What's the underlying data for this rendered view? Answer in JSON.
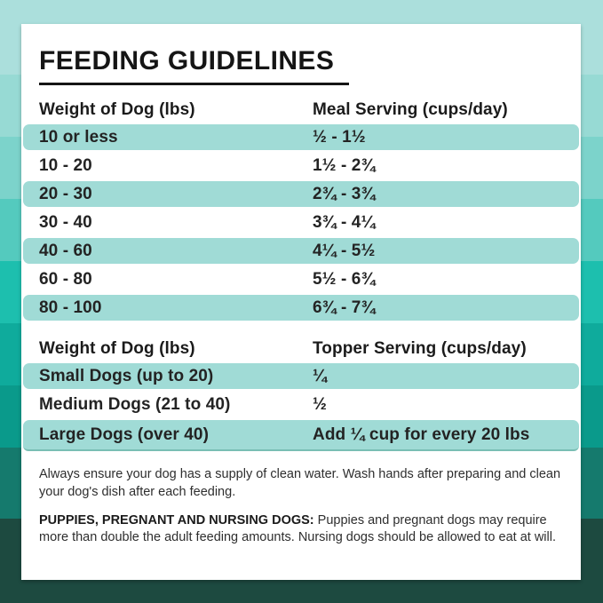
{
  "title": "FEEDING GUIDELINES",
  "meal_table": {
    "headers": {
      "weight": "Weight of Dog (lbs)",
      "serving": "Meal Serving (cups/day)"
    },
    "rows": [
      {
        "weight": "10 or less",
        "serving": "½ - 1½"
      },
      {
        "weight": "10 - 20",
        "serving": "1½ - 2¾"
      },
      {
        "weight": "20 - 30",
        "serving": "2¾ - 3¾"
      },
      {
        "weight": "30 - 40",
        "serving": "3¾ - 4¼"
      },
      {
        "weight": "40 - 60",
        "serving": "4¼ - 5½"
      },
      {
        "weight": "60 - 80",
        "serving": "5½ - 6¾"
      },
      {
        "weight": "80 - 100",
        "serving": "6¾ - 7¾"
      }
    ]
  },
  "topper_table": {
    "headers": {
      "weight": "Weight of Dog (lbs)",
      "serving": "Topper Serving (cups/day)"
    },
    "rows": [
      {
        "weight": "Small Dogs (up to 20)",
        "serving": "¼"
      },
      {
        "weight": "Medium Dogs (21 to 40)",
        "serving": "½"
      },
      {
        "weight": "Large Dogs (over 40)",
        "serving": "Add ¼ cup for every 20 lbs"
      }
    ]
  },
  "notes": {
    "water": "Always ensure your dog has a supply of clean water. Wash hands after preparing and clean your dog's dish after each feeding.",
    "special_label": "PUPPIES, PREGNANT AND NURSING DOGS:",
    "special_text": "Puppies and pregnant dogs may require more than double the adult feeding amounts. Nursing dogs should be allowed to eat at will."
  },
  "colors": {
    "card_bg": "#ffffff",
    "row_stripe": "#a0dbd6",
    "stripe_bottom_edge": "#79beb4",
    "heading_text": "#151515",
    "body_text": "#232323",
    "note_text": "#2e2e2e",
    "background_bands": [
      "#abdfdc",
      "#97dad4",
      "#7cd3cb",
      "#54cabe",
      "#1dbfae",
      "#0fab9c",
      "#0a9a8b",
      "#157a6d",
      "#1d4a40"
    ]
  }
}
